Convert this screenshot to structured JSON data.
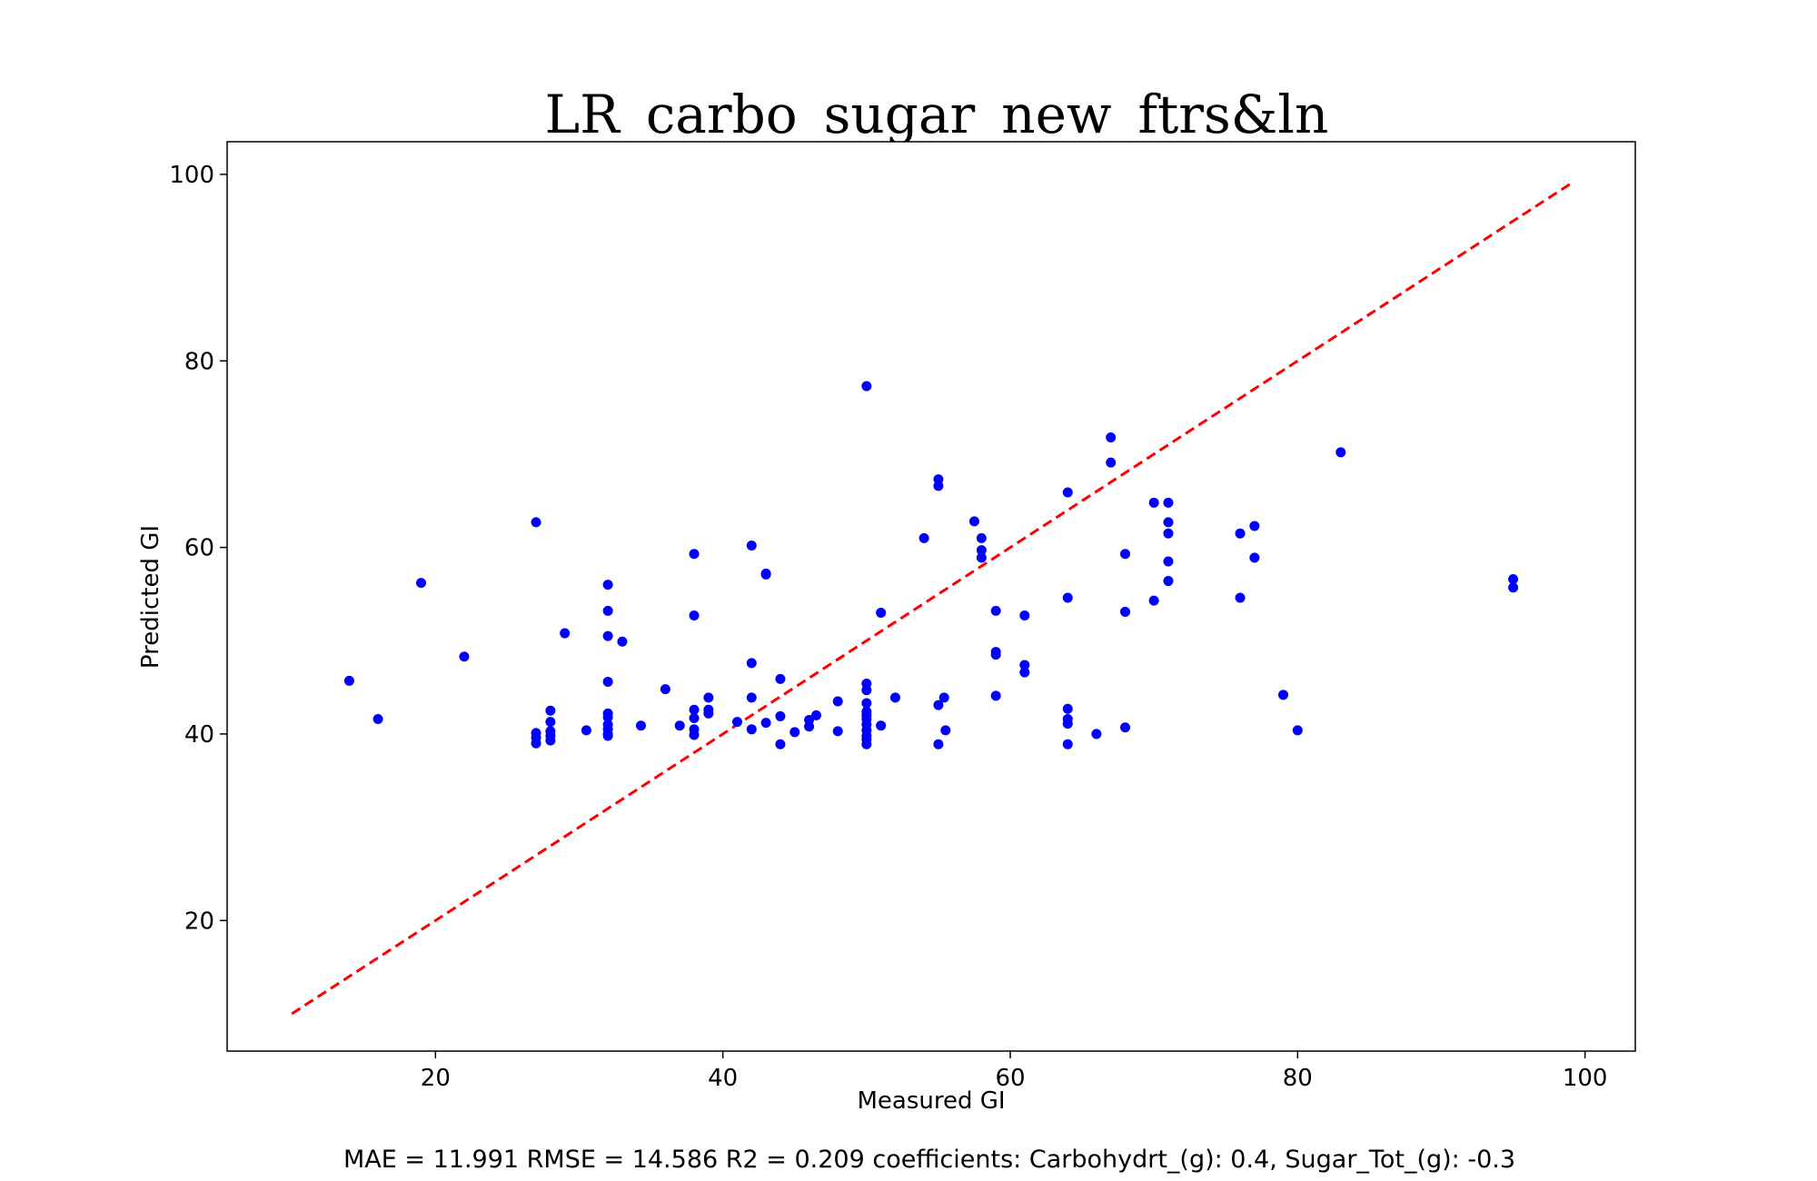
{
  "chart_data": {
    "type": "scatter",
    "title": "LR_carbo_sugar_new_ftrs&ln",
    "xlabel": "Measured GI",
    "ylabel": "Predicted GI",
    "xlim": [
      5.5,
      103.5
    ],
    "ylim": [
      6,
      103.5
    ],
    "xticks": [
      20,
      40,
      60,
      80,
      100
    ],
    "yticks": [
      20,
      40,
      60,
      80,
      100
    ],
    "grid": false,
    "reference_line": {
      "style": "dashed",
      "color": "#ff0000",
      "from": [
        10,
        10
      ],
      "to": [
        99,
        99
      ]
    },
    "series": [
      {
        "color": "#0000ff",
        "points": [
          [
            14,
            45.7
          ],
          [
            16,
            41.6
          ],
          [
            19,
            56.2
          ],
          [
            22,
            48.3
          ],
          [
            27,
            62.7
          ],
          [
            27,
            40.1
          ],
          [
            27,
            39.6
          ],
          [
            27,
            39.0
          ],
          [
            28,
            42.5
          ],
          [
            28,
            41.3
          ],
          [
            28,
            40.3
          ],
          [
            28,
            39.8
          ],
          [
            28,
            39.3
          ],
          [
            29,
            50.8
          ],
          [
            30.5,
            40.4
          ],
          [
            32,
            56.0
          ],
          [
            32,
            53.2
          ],
          [
            32,
            50.5
          ],
          [
            32,
            45.6
          ],
          [
            32,
            42.2
          ],
          [
            32,
            41.8
          ],
          [
            32,
            41.0
          ],
          [
            32,
            40.5
          ],
          [
            32,
            40.0
          ],
          [
            32,
            39.8
          ],
          [
            33,
            49.9
          ],
          [
            34.3,
            40.9
          ],
          [
            36,
            44.8
          ],
          [
            37,
            40.9
          ],
          [
            38,
            59.3
          ],
          [
            38,
            52.7
          ],
          [
            38,
            42.6
          ],
          [
            38,
            41.7
          ],
          [
            38,
            40.5
          ],
          [
            38,
            39.9
          ],
          [
            39,
            43.9
          ],
          [
            39,
            42.6
          ],
          [
            39,
            42.2
          ],
          [
            41,
            41.3
          ],
          [
            42,
            60.2
          ],
          [
            42,
            47.6
          ],
          [
            42,
            43.9
          ],
          [
            42,
            40.5
          ],
          [
            43,
            57.2
          ],
          [
            43,
            57.1
          ],
          [
            43,
            41.2
          ],
          [
            44,
            45.9
          ],
          [
            44,
            41.9
          ],
          [
            44,
            38.9
          ],
          [
            45,
            40.2
          ],
          [
            46,
            41.5
          ],
          [
            46,
            40.8
          ],
          [
            46.5,
            42.0
          ],
          [
            48,
            43.5
          ],
          [
            48,
            40.3
          ],
          [
            50,
            77.3
          ],
          [
            50,
            45.4
          ],
          [
            50,
            44.7
          ],
          [
            50,
            43.3
          ],
          [
            50,
            42.4
          ],
          [
            50,
            42.0
          ],
          [
            50,
            41.6
          ],
          [
            50,
            41.0
          ],
          [
            50,
            40.4
          ],
          [
            50,
            39.8
          ],
          [
            50,
            39.4
          ],
          [
            50,
            38.9
          ],
          [
            51,
            53.0
          ],
          [
            51,
            40.9
          ],
          [
            52,
            43.9
          ],
          [
            54,
            61.0
          ],
          [
            55,
            67.3
          ],
          [
            55,
            66.6
          ],
          [
            55,
            43.1
          ],
          [
            55,
            38.9
          ],
          [
            55.4,
            43.9
          ],
          [
            55.5,
            40.4
          ],
          [
            57.5,
            62.8
          ],
          [
            58,
            61.0
          ],
          [
            58,
            59.7
          ],
          [
            58,
            58.9
          ],
          [
            59,
            53.2
          ],
          [
            59,
            48.8
          ],
          [
            59,
            48.5
          ],
          [
            59,
            44.1
          ],
          [
            61,
            52.7
          ],
          [
            61,
            47.4
          ],
          [
            61,
            46.6
          ],
          [
            64,
            65.9
          ],
          [
            64,
            54.6
          ],
          [
            64,
            42.7
          ],
          [
            64,
            41.6
          ],
          [
            64,
            41.1
          ],
          [
            64,
            38.9
          ],
          [
            66,
            40.0
          ],
          [
            67,
            71.8
          ],
          [
            67,
            69.1
          ],
          [
            68,
            59.3
          ],
          [
            68,
            53.1
          ],
          [
            68,
            40.7
          ],
          [
            70,
            64.8
          ],
          [
            70,
            54.3
          ],
          [
            71,
            64.8
          ],
          [
            71,
            62.7
          ],
          [
            71,
            61.5
          ],
          [
            71,
            58.5
          ],
          [
            71,
            56.4
          ],
          [
            76,
            61.5
          ],
          [
            76,
            54.6
          ],
          [
            77,
            62.3
          ],
          [
            77,
            58.9
          ],
          [
            79,
            44.2
          ],
          [
            80,
            40.4
          ],
          [
            83,
            70.2
          ],
          [
            95,
            56.6
          ],
          [
            95,
            55.7
          ]
        ]
      }
    ],
    "caption": "MAE = 11.991 RMSE = 14.586 R2 = 0.209 coefficients: Carbohydrt_(g): 0.4, Sugar_Tot_(g): -0.3"
  }
}
